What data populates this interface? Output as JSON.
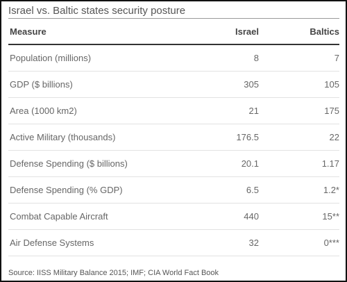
{
  "chart_data": {
    "type": "table",
    "title": "Israel vs. Baltic states security posture",
    "columns": [
      "Measure",
      "Israel",
      "Baltics"
    ],
    "rows": [
      [
        "Population (millions)",
        "8",
        "7"
      ],
      [
        "GDP ($ billions)",
        "305",
        "105"
      ],
      [
        "Area (1000 km2)",
        "21",
        "175"
      ],
      [
        "Active Military (thousands)",
        "176.5",
        "22"
      ],
      [
        "Defense Spending ($ billions)",
        "20.1",
        "1.17"
      ],
      [
        "Defense Spending (% GDP)",
        "6.5",
        "1.2*"
      ],
      [
        "Combat Capable Aircraft",
        "440",
        "15**"
      ],
      [
        "Air Defense Systems",
        "32",
        "0***"
      ]
    ],
    "source": "Source: IISS Military Balance 2015; IMF; CIA World Fact Book"
  },
  "colors": {
    "frame_border": "#111111",
    "title_text": "#555555",
    "header_rule": "#333333",
    "row_rule": "#e2e2e2",
    "body_text": "#666666"
  }
}
